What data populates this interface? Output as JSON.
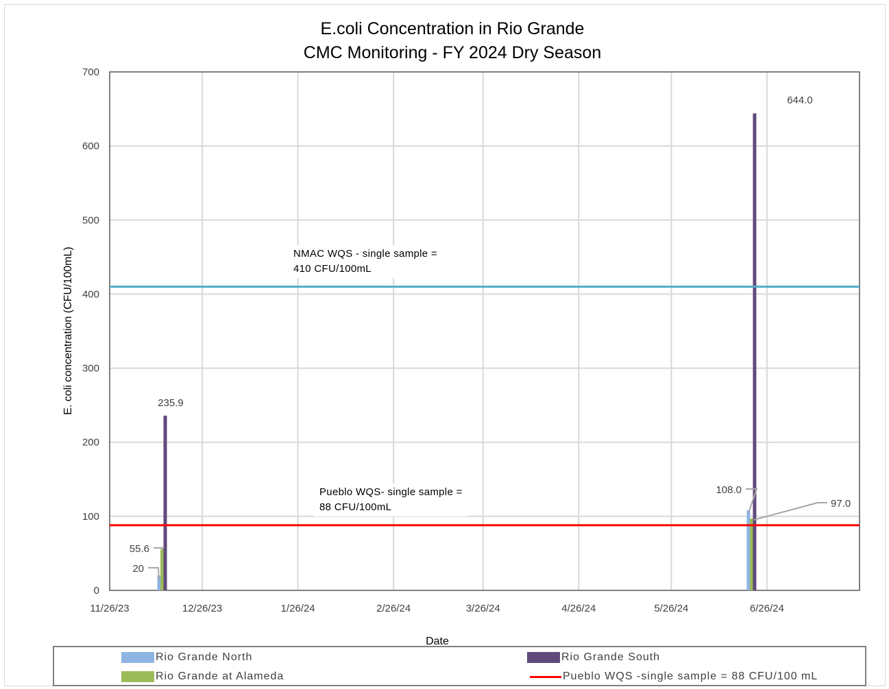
{
  "chart_data": {
    "type": "bar",
    "title": "E.coli Concentration in Rio Grande",
    "subtitle": "CMC Monitoring - FY 2024 Dry Season",
    "xlabel": "Date",
    "ylabel": "E. coli concentration (CFU/100mL)",
    "ylim": [
      0,
      700
    ],
    "yticks": [
      0,
      100,
      200,
      300,
      400,
      500,
      600,
      700
    ],
    "xlim": [
      "11/26/23",
      "7/26/24"
    ],
    "xticks": [
      "11/26/23",
      "12/26/23",
      "1/26/24",
      "2/26/24",
      "3/26/24",
      "4/26/24",
      "5/26/24",
      "6/26/24"
    ],
    "grid": true,
    "legend_position": "bottom",
    "series": [
      {
        "name": "Rio Grande North",
        "color": "#8eb4e3",
        "x": [
          "12/12/23",
          "6/20/24"
        ],
        "values": [
          20,
          108.0
        ],
        "labels": [
          "20",
          "108.0"
        ]
      },
      {
        "name": "Rio Grande at Alameda",
        "color": "#9bbb59",
        "x": [
          "12/13/23",
          "6/21/24"
        ],
        "values": [
          55.6,
          97.0
        ],
        "labels": [
          "55.6",
          "97.0"
        ]
      },
      {
        "name": "Rio Grande South",
        "color": "#604a7b",
        "x": [
          "12/14/23",
          "6/22/24"
        ],
        "values": [
          235.9,
          644.0
        ],
        "labels": [
          "235.9",
          "644.0"
        ]
      }
    ],
    "reference_lines": [
      {
        "name": "NMAC WQS - single sample = 410 CFU/100mL",
        "value": 410,
        "color": "#4bacc6",
        "label_line1": "NMAC WQS - single sample =",
        "label_line2": "410 CFU/100mL"
      },
      {
        "name": "Pueblo WQS -single sample = 88 CFU/100 mL",
        "value": 88,
        "color": "#ff0000",
        "label_line1": "Pueblo WQS- single sample =",
        "label_line2": "88 CFU/100mL"
      }
    ]
  },
  "legend": {
    "items": [
      {
        "label": "Rio Grande North",
        "color": "#8eb4e3"
      },
      {
        "label": "Rio Grande South",
        "color": "#604a7b"
      },
      {
        "label": "Rio Grande at Alameda",
        "color": "#9bbb59"
      },
      {
        "label": "Pueblo WQS -single sample = 88 CFU/100 mL",
        "color": "#ff0000"
      }
    ]
  }
}
